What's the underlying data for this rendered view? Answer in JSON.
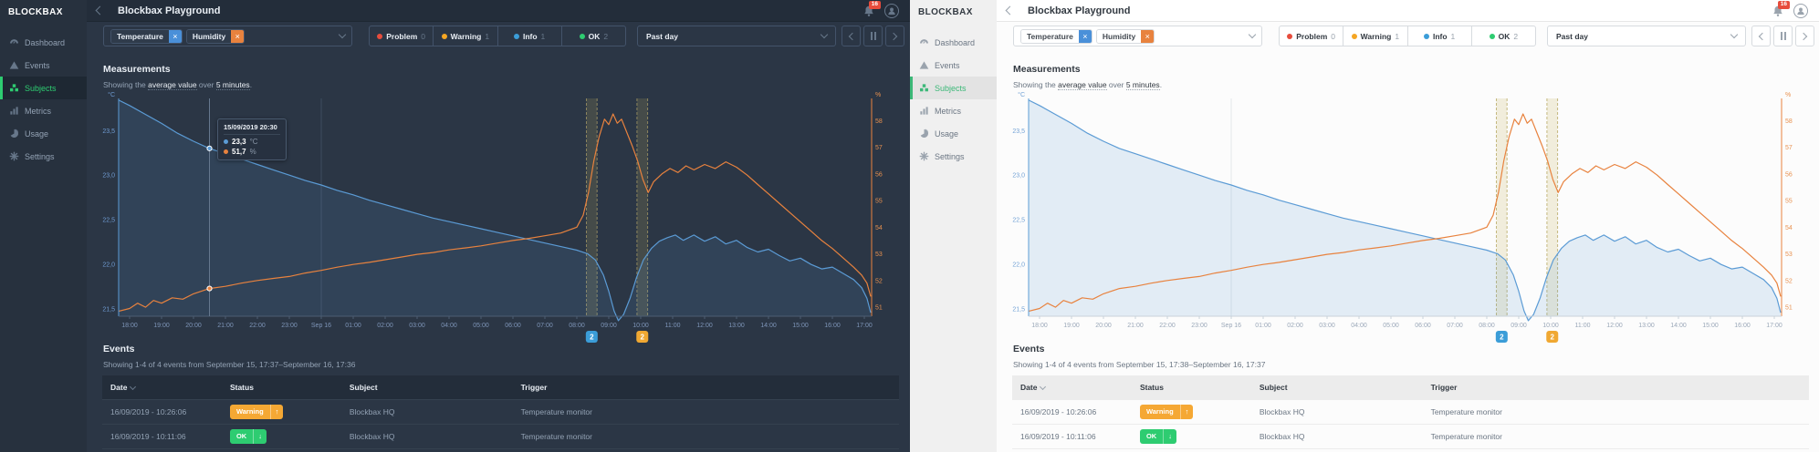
{
  "colors": {
    "accent_green": "#2ecc71",
    "temperature_blue": "#5b9bd5",
    "humidity_orange": "#e8823e",
    "chip_blue": "#4a90d9",
    "chip_orange": "#e8823e",
    "notification_red": "#e74c3c",
    "warning_badge": "#f5a834",
    "ok_badge": "#2ecc71"
  },
  "shared": {
    "logo": "BLOCKBAX",
    "topbar": {
      "title": "Blockbax Playground",
      "bell_badge": "16"
    },
    "sidebar": {
      "items": [
        {
          "label": "Dashboard",
          "icon": "gauge-icon"
        },
        {
          "label": "Events",
          "icon": "warning-triangle-icon"
        },
        {
          "label": "Subjects",
          "icon": "cubes-icon",
          "active": true
        },
        {
          "label": "Metrics",
          "icon": "bar-chart-icon"
        },
        {
          "label": "Usage",
          "icon": "pie-chart-icon"
        },
        {
          "label": "Settings",
          "icon": "gear-icon"
        }
      ]
    },
    "filters": {
      "metric_chips": [
        {
          "label": "Temperature",
          "remove_icon": "×",
          "color": "#4a90d9"
        },
        {
          "label": "Humidity",
          "remove_icon": "×",
          "color": "#e8823e"
        }
      ],
      "status_segments": [
        {
          "label": "Problem",
          "count": "0",
          "color": "#e74c3c"
        },
        {
          "label": "Warning",
          "count": "1",
          "color": "#f5a623"
        },
        {
          "label": "Info",
          "count": "1",
          "color": "#3b9dd8"
        },
        {
          "label": "OK",
          "count": "2",
          "color": "#2ecc71"
        }
      ],
      "time_range": {
        "value": "Past day"
      }
    },
    "measurements": {
      "heading": "Measurements",
      "subtext_prefix": "Showing the ",
      "subtext_link1": "average value",
      "subtext_middle": " over ",
      "subtext_link2": "5 minutes",
      "subtext_suffix": "."
    },
    "events": {
      "heading": "Events",
      "table": {
        "columns": [
          "Date",
          "Status",
          "Subject",
          "Trigger"
        ],
        "rows": [
          {
            "date": "16/09/2019 - 10:26:06",
            "status": "Warning",
            "status_arrow": "↑",
            "status_color": "#f5a834",
            "subject": "Blockbax HQ",
            "trigger": "Temperature monitor"
          },
          {
            "date": "16/09/2019 - 10:11:06",
            "status": "OK",
            "status_arrow": "↓",
            "status_color": "#2ecc71",
            "subject": "Blockbax HQ",
            "trigger": "Temperature monitor"
          }
        ]
      }
    }
  },
  "panels": [
    {
      "name": "dark-theme",
      "events_showing": "Showing 1-4 of 4 events from September 15, 17:37–September 16, 17:36",
      "tooltip": {
        "title": "15/09/2019 20:30",
        "time_min": 150,
        "rows": [
          {
            "value": "23,3",
            "unit": "°C",
            "value_num": 23.3,
            "axis": "left",
            "color": "#5b9bd5"
          },
          {
            "value": "51,7",
            "unit": "%",
            "value_num": 51.7,
            "axis": "right",
            "color": "#e8823e"
          }
        ]
      }
    },
    {
      "name": "light-theme",
      "events_showing": "Showing 1-4 of 4 events from September 15, 17:38–September 16, 17:37",
      "tooltip": null
    }
  ],
  "chart_data": {
    "type": "line",
    "title": "Measurements — average value over 5 minutes",
    "x_axis": {
      "ticks": [
        [
          "18:00",
          0
        ],
        [
          "19:00",
          60
        ],
        [
          "20:00",
          120
        ],
        [
          "21:00",
          180
        ],
        [
          "22:00",
          240
        ],
        [
          "23:00",
          300
        ],
        [
          "Sep 16",
          360
        ],
        [
          "01:00",
          420
        ],
        [
          "02:00",
          480
        ],
        [
          "03:00",
          540
        ],
        [
          "04:00",
          600
        ],
        [
          "05:00",
          660
        ],
        [
          "06:00",
          720
        ],
        [
          "07:00",
          780
        ],
        [
          "08:00",
          840
        ],
        [
          "09:00",
          900
        ],
        [
          "10:00",
          960
        ],
        [
          "11:00",
          1020
        ],
        [
          "12:00",
          1080
        ],
        [
          "13:00",
          1140
        ],
        [
          "14:00",
          1200
        ],
        [
          "15:00",
          1260
        ],
        [
          "16:00",
          1320
        ],
        [
          "17:00",
          1380
        ]
      ],
      "start_min": -20,
      "end_min": 1394
    },
    "y_left": {
      "unit": "°C",
      "ticks": [
        23.5,
        23.0,
        22.5,
        22.0,
        21.5
      ],
      "range": [
        21.42,
        23.86
      ]
    },
    "y_right": {
      "unit": "%",
      "ticks": [
        58,
        57,
        56,
        55,
        54,
        53,
        52,
        51
      ],
      "range": [
        50.66,
        58.83
      ]
    },
    "series": [
      {
        "name": "Temperature",
        "unit": "°C",
        "color": "#5b9bd5",
        "axis": "left",
        "area": true,
        "points": [
          [
            -20,
            23.84
          ],
          [
            0,
            23.78
          ],
          [
            30,
            23.68
          ],
          [
            60,
            23.58
          ],
          [
            90,
            23.47
          ],
          [
            120,
            23.38
          ],
          [
            150,
            23.3
          ],
          [
            180,
            23.24
          ],
          [
            210,
            23.18
          ],
          [
            240,
            23.12
          ],
          [
            270,
            23.06
          ],
          [
            300,
            23.0
          ],
          [
            330,
            22.94
          ],
          [
            360,
            22.89
          ],
          [
            390,
            22.83
          ],
          [
            420,
            22.78
          ],
          [
            450,
            22.72
          ],
          [
            480,
            22.67
          ],
          [
            510,
            22.62
          ],
          [
            540,
            22.57
          ],
          [
            570,
            22.52
          ],
          [
            600,
            22.48
          ],
          [
            630,
            22.44
          ],
          [
            660,
            22.4
          ],
          [
            690,
            22.36
          ],
          [
            720,
            22.32
          ],
          [
            750,
            22.28
          ],
          [
            780,
            22.24
          ],
          [
            810,
            22.2
          ],
          [
            840,
            22.16
          ],
          [
            860,
            22.12
          ],
          [
            875,
            22.05
          ],
          [
            890,
            21.88
          ],
          [
            900,
            21.7
          ],
          [
            910,
            21.48
          ],
          [
            918,
            21.37
          ],
          [
            928,
            21.44
          ],
          [
            940,
            21.62
          ],
          [
            952,
            21.85
          ],
          [
            965,
            22.05
          ],
          [
            980,
            22.18
          ],
          [
            995,
            22.26
          ],
          [
            1010,
            22.3
          ],
          [
            1025,
            22.33
          ],
          [
            1040,
            22.27
          ],
          [
            1060,
            22.33
          ],
          [
            1080,
            22.26
          ],
          [
            1100,
            22.31
          ],
          [
            1120,
            22.23
          ],
          [
            1140,
            22.27
          ],
          [
            1160,
            22.19
          ],
          [
            1180,
            22.14
          ],
          [
            1200,
            22.17
          ],
          [
            1220,
            22.1
          ],
          [
            1240,
            22.04
          ],
          [
            1260,
            22.07
          ],
          [
            1280,
            22.0
          ],
          [
            1300,
            21.95
          ],
          [
            1320,
            21.97
          ],
          [
            1340,
            21.9
          ],
          [
            1360,
            21.83
          ],
          [
            1375,
            21.74
          ],
          [
            1385,
            21.62
          ],
          [
            1392,
            21.46
          ]
        ]
      },
      {
        "name": "Humidity",
        "unit": "%",
        "color": "#e8823e",
        "axis": "right",
        "area": false,
        "points": [
          [
            -20,
            50.85
          ],
          [
            0,
            50.95
          ],
          [
            15,
            51.15
          ],
          [
            30,
            51.0
          ],
          [
            45,
            51.25
          ],
          [
            60,
            51.15
          ],
          [
            80,
            51.35
          ],
          [
            100,
            51.3
          ],
          [
            120,
            51.5
          ],
          [
            150,
            51.7
          ],
          [
            180,
            51.78
          ],
          [
            210,
            51.9
          ],
          [
            240,
            52.0
          ],
          [
            270,
            52.08
          ],
          [
            300,
            52.15
          ],
          [
            330,
            52.28
          ],
          [
            360,
            52.38
          ],
          [
            390,
            52.5
          ],
          [
            420,
            52.6
          ],
          [
            450,
            52.68
          ],
          [
            480,
            52.78
          ],
          [
            510,
            52.88
          ],
          [
            540,
            52.98
          ],
          [
            570,
            53.05
          ],
          [
            600,
            53.15
          ],
          [
            630,
            53.22
          ],
          [
            660,
            53.3
          ],
          [
            690,
            53.4
          ],
          [
            720,
            53.5
          ],
          [
            750,
            53.58
          ],
          [
            780,
            53.68
          ],
          [
            810,
            53.78
          ],
          [
            840,
            54.0
          ],
          [
            852,
            54.45
          ],
          [
            862,
            55.3
          ],
          [
            872,
            56.5
          ],
          [
            882,
            57.4
          ],
          [
            892,
            58.05
          ],
          [
            900,
            57.85
          ],
          [
            908,
            58.25
          ],
          [
            916,
            57.9
          ],
          [
            924,
            58.05
          ],
          [
            934,
            57.55
          ],
          [
            944,
            57.05
          ],
          [
            954,
            56.5
          ],
          [
            964,
            55.8
          ],
          [
            974,
            55.3
          ],
          [
            984,
            55.7
          ],
          [
            1000,
            56.0
          ],
          [
            1015,
            56.2
          ],
          [
            1030,
            56.05
          ],
          [
            1045,
            56.3
          ],
          [
            1060,
            56.15
          ],
          [
            1080,
            56.35
          ],
          [
            1100,
            56.2
          ],
          [
            1120,
            56.45
          ],
          [
            1140,
            56.25
          ],
          [
            1160,
            55.95
          ],
          [
            1180,
            55.6
          ],
          [
            1200,
            55.25
          ],
          [
            1220,
            54.9
          ],
          [
            1240,
            54.55
          ],
          [
            1260,
            54.2
          ],
          [
            1280,
            53.85
          ],
          [
            1300,
            53.5
          ],
          [
            1320,
            53.2
          ],
          [
            1340,
            52.85
          ],
          [
            1360,
            52.5
          ],
          [
            1375,
            52.2
          ],
          [
            1385,
            51.9
          ],
          [
            1392,
            51.4
          ]
        ]
      }
    ],
    "event_bands": [
      {
        "start_min": 858,
        "end_min": 878
      },
      {
        "start_min": 953,
        "end_min": 973
      }
    ],
    "event_markers": [
      {
        "min": 868,
        "count": "2",
        "color": "#3b9dd8"
      },
      {
        "min": 963,
        "count": "2",
        "color": "#f0a832"
      }
    ],
    "legend_position": "none",
    "grid": "minimal"
  }
}
